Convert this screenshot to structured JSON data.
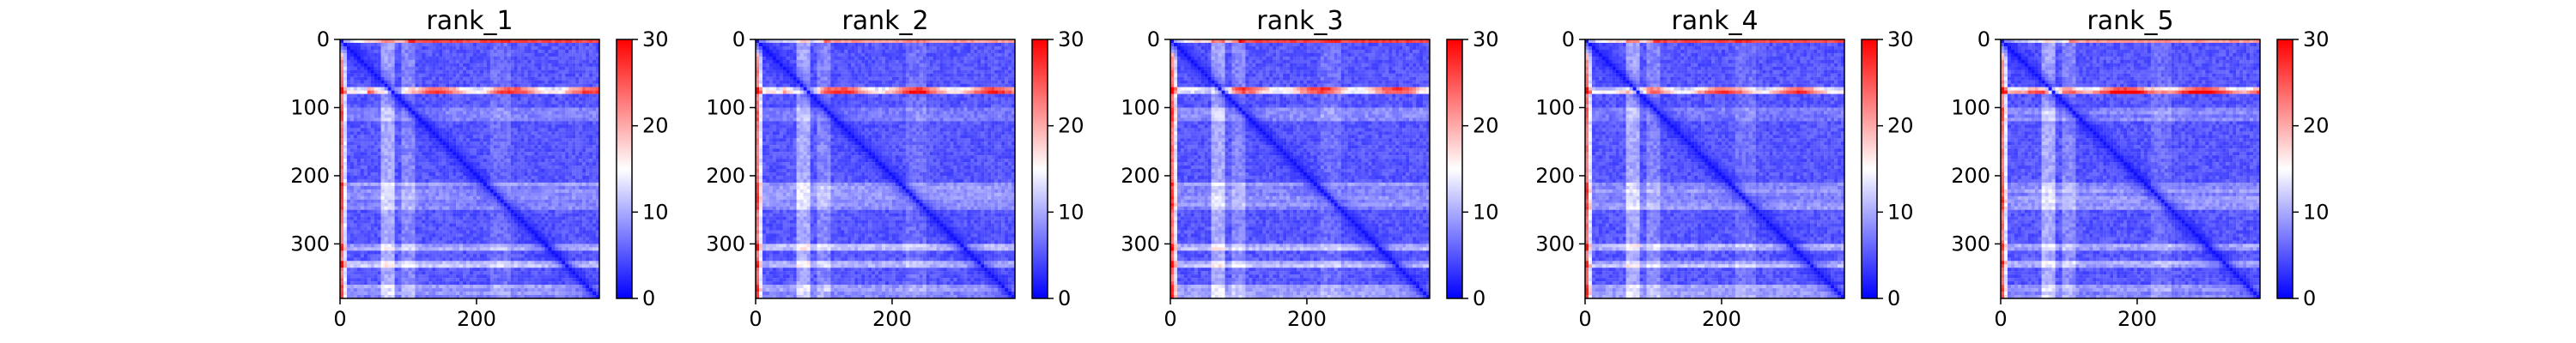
{
  "chart_data": [
    {
      "type": "heatmap",
      "title": "rank_1",
      "xlim": [
        0,
        380
      ],
      "ylim": [
        380,
        0
      ],
      "xticks": [
        "0",
        "200"
      ],
      "yticks": [
        "0",
        "100",
        "200",
        "300"
      ],
      "colorbar": {
        "range": [
          0,
          30
        ],
        "ticks": [
          "0",
          "10",
          "20",
          "30"
        ],
        "colormap": "bwr"
      }
    },
    {
      "type": "heatmap",
      "title": "rank_2",
      "xlim": [
        0,
        380
      ],
      "ylim": [
        380,
        0
      ],
      "xticks": [
        "0",
        "200"
      ],
      "yticks": [
        "0",
        "100",
        "200",
        "300"
      ],
      "colorbar": {
        "range": [
          0,
          30
        ],
        "ticks": [
          "0",
          "10",
          "20",
          "30"
        ],
        "colormap": "bwr"
      }
    },
    {
      "type": "heatmap",
      "title": "rank_3",
      "xlim": [
        0,
        380
      ],
      "ylim": [
        380,
        0
      ],
      "xticks": [
        "0",
        "200"
      ],
      "yticks": [
        "0",
        "100",
        "200",
        "300"
      ],
      "colorbar": {
        "range": [
          0,
          30
        ],
        "ticks": [
          "0",
          "10",
          "20",
          "30"
        ],
        "colormap": "bwr"
      }
    },
    {
      "type": "heatmap",
      "title": "rank_4",
      "xlim": [
        0,
        380
      ],
      "ylim": [
        380,
        0
      ],
      "xticks": [
        "0",
        "200"
      ],
      "yticks": [
        "0",
        "100",
        "200",
        "300"
      ],
      "colorbar": {
        "range": [
          0,
          30
        ],
        "ticks": [
          "0",
          "10",
          "20",
          "30"
        ],
        "colormap": "bwr"
      }
    },
    {
      "type": "heatmap",
      "title": "rank_5",
      "xlim": [
        0,
        380
      ],
      "ylim": [
        380,
        0
      ],
      "xticks": [
        "0",
        "200"
      ],
      "yticks": [
        "0",
        "100",
        "200",
        "300"
      ],
      "colorbar": {
        "range": [
          0,
          30
        ],
        "ticks": [
          "0",
          "10",
          "20",
          "30"
        ],
        "colormap": "bwr"
      }
    }
  ],
  "colors": {
    "low": "#0000ff",
    "mid": "#ffffff",
    "high": "#ff0000"
  }
}
